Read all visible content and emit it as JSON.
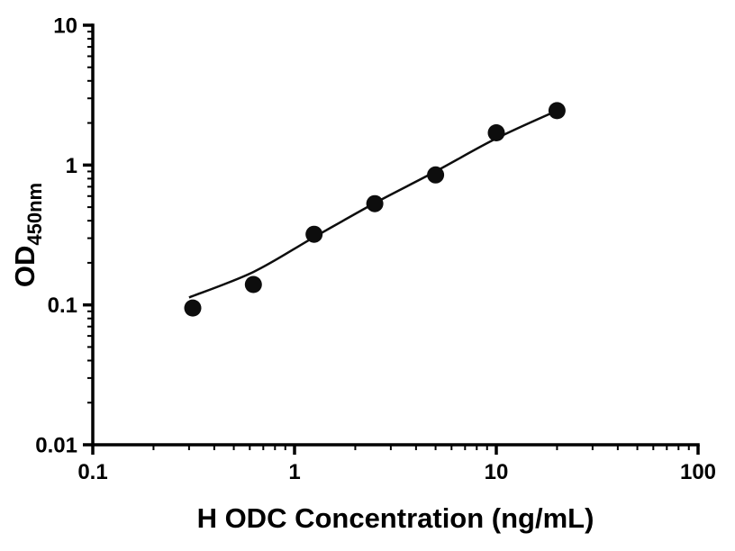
{
  "page": {
    "background_color": "#ffffff"
  },
  "chart_data": {
    "type": "scatter",
    "subtype": "elisa-standard-curve-with-fit-line",
    "title": "",
    "xlabel": "H ODC Concentration (ng/mL)",
    "ylabel": "OD",
    "ylabel_subscript": "450nm",
    "x_scale": "log",
    "y_scale": "log",
    "x_range": [
      0.1,
      100
    ],
    "y_range": [
      0.01,
      10
    ],
    "x_ticks": [
      {
        "value": 0.1,
        "label": "0.1"
      },
      {
        "value": 1,
        "label": "1"
      },
      {
        "value": 10,
        "label": "10"
      },
      {
        "value": 100,
        "label": "100"
      }
    ],
    "y_ticks": [
      {
        "value": 0.01,
        "label": "0.01"
      },
      {
        "value": 0.1,
        "label": "0.1"
      },
      {
        "value": 1,
        "label": "1"
      },
      {
        "value": 10,
        "label": "10"
      }
    ],
    "points": [
      {
        "x": 0.313,
        "y": 0.095
      },
      {
        "x": 0.625,
        "y": 0.14
      },
      {
        "x": 1.25,
        "y": 0.32
      },
      {
        "x": 2.5,
        "y": 0.53
      },
      {
        "x": 5,
        "y": 0.85
      },
      {
        "x": 10,
        "y": 1.7
      },
      {
        "x": 20,
        "y": 2.45
      }
    ],
    "fit_curve": [
      {
        "x": 0.3,
        "y": 0.113
      },
      {
        "x": 0.625,
        "y": 0.172
      },
      {
        "x": 1.25,
        "y": 0.305
      },
      {
        "x": 2.5,
        "y": 0.535
      },
      {
        "x": 5,
        "y": 0.9
      },
      {
        "x": 10,
        "y": 1.55
      },
      {
        "x": 20,
        "y": 2.45
      }
    ],
    "grid": "off",
    "legend": "none",
    "marker_color": "#0d0d0d",
    "curve_color": "#0d0d0d",
    "axis_color": "#000000",
    "marker_radius": 9.5
  }
}
